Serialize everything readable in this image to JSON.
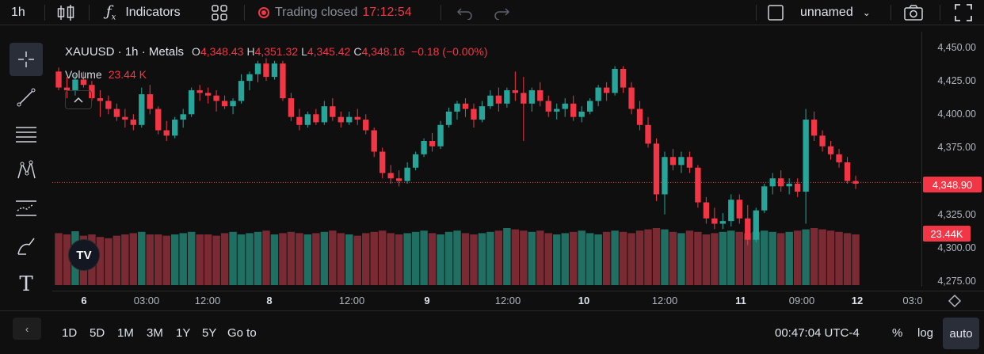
{
  "toolbar": {
    "interval": "1h",
    "indicators_label": "Indicators",
    "market_status": "Trading closed",
    "market_time": "17:12:54",
    "layout_name": "unnamed"
  },
  "legend": {
    "symbol": "XAUUSD · 1h · Metals",
    "o_label": "O",
    "o_value": "4,348.43",
    "h_label": "H",
    "h_value": "4,351.32",
    "l_label": "L",
    "l_value": "4,345.42",
    "c_label": "C",
    "c_value": "4,348.16",
    "change": "−0.18 (−0.00%)",
    "volume_label": "Volume",
    "volume_value": "23.44 K"
  },
  "price_axis": {
    "ticks": [
      "4,450.00",
      "4,425.00",
      "4,400.00",
      "4,375.00",
      "4,325.00",
      "4,300.00",
      "4,275.00"
    ],
    "last_price": "4,348.90",
    "last_volume": "23.44K"
  },
  "time_axis": {
    "ticks": [
      {
        "label": "6",
        "bold": true
      },
      {
        "label": "03:00",
        "bold": false
      },
      {
        "label": "12:00",
        "bold": false
      },
      {
        "label": "8",
        "bold": true
      },
      {
        "label": "12:00",
        "bold": false
      },
      {
        "label": "9",
        "bold": true
      },
      {
        "label": "12:00",
        "bold": false
      },
      {
        "label": "10",
        "bold": true
      },
      {
        "label": "12:00",
        "bold": false
      },
      {
        "label": "11",
        "bold": true
      },
      {
        "label": "09:00",
        "bold": false
      },
      {
        "label": "12",
        "bold": true
      },
      {
        "label": "03:0",
        "bold": false
      }
    ]
  },
  "bottom": {
    "ranges": [
      "1D",
      "5D",
      "1M",
      "3M",
      "1Y",
      "5Y"
    ],
    "goto": "Go to",
    "clock": "00:47:04 UTC-4",
    "percent": "%",
    "log": "log",
    "auto": "auto"
  },
  "colors": {
    "up": "#26a69a",
    "down": "#f23645",
    "up_volume": "#1f6f63",
    "down_volume": "#7a2a33",
    "background": "#0f0f0f"
  },
  "chart_data": {
    "type": "candlestick",
    "symbol": "XAUUSD",
    "interval": "1h",
    "ylim": [
      4270,
      4455
    ],
    "last_price": 4348.9,
    "candles": [
      [
        4432,
        4435,
        4418,
        4420
      ],
      [
        4420,
        4428,
        4412,
        4418
      ],
      [
        4418,
        4430,
        4414,
        4426
      ],
      [
        4426,
        4432,
        4420,
        4422
      ],
      [
        4422,
        4425,
        4410,
        4412
      ],
      [
        4412,
        4418,
        4398,
        4410
      ],
      [
        4410,
        4414,
        4400,
        4404
      ],
      [
        4404,
        4408,
        4395,
        4398
      ],
      [
        4398,
        4404,
        4390,
        4396
      ],
      [
        4396,
        4400,
        4388,
        4392
      ],
      [
        4392,
        4420,
        4390,
        4415
      ],
      [
        4415,
        4422,
        4400,
        4404
      ],
      [
        4404,
        4406,
        4385,
        4388
      ],
      [
        4388,
        4395,
        4380,
        4384
      ],
      [
        4384,
        4398,
        4382,
        4396
      ],
      [
        4396,
        4404,
        4390,
        4400
      ],
      [
        4400,
        4420,
        4398,
        4418
      ],
      [
        4418,
        4422,
        4410,
        4416
      ],
      [
        4416,
        4420,
        4408,
        4414
      ],
      [
        4414,
        4418,
        4402,
        4410
      ],
      [
        4410,
        4414,
        4404,
        4406
      ],
      [
        4406,
        4412,
        4400,
        4410
      ],
      [
        4410,
        4430,
        4408,
        4425
      ],
      [
        4425,
        4432,
        4418,
        4430
      ],
      [
        4430,
        4440,
        4424,
        4438
      ],
      [
        4438,
        4442,
        4425,
        4428
      ],
      [
        4428,
        4440,
        4426,
        4438
      ],
      [
        4438,
        4440,
        4410,
        4412
      ],
      [
        4412,
        4416,
        4395,
        4398
      ],
      [
        4398,
        4404,
        4388,
        4392
      ],
      [
        4392,
        4402,
        4390,
        4400
      ],
      [
        4400,
        4404,
        4392,
        4394
      ],
      [
        4394,
        4410,
        4392,
        4406
      ],
      [
        4406,
        4412,
        4395,
        4398
      ],
      [
        4398,
        4402,
        4390,
        4394
      ],
      [
        4394,
        4402,
        4392,
        4398
      ],
      [
        4398,
        4404,
        4392,
        4396
      ],
      [
        4396,
        4400,
        4385,
        4388
      ],
      [
        4388,
        4390,
        4368,
        4372
      ],
      [
        4372,
        4375,
        4352,
        4356
      ],
      [
        4356,
        4362,
        4348,
        4352
      ],
      [
        4352,
        4358,
        4346,
        4350
      ],
      [
        4350,
        4364,
        4348,
        4360
      ],
      [
        4360,
        4372,
        4358,
        4370
      ],
      [
        4370,
        4382,
        4368,
        4380
      ],
      [
        4380,
        4386,
        4372,
        4376
      ],
      [
        4376,
        4395,
        4374,
        4392
      ],
      [
        4392,
        4405,
        4390,
        4402
      ],
      [
        4402,
        4410,
        4396,
        4408
      ],
      [
        4408,
        4412,
        4398,
        4404
      ],
      [
        4404,
        4408,
        4390,
        4396
      ],
      [
        4396,
        4410,
        4394,
        4406
      ],
      [
        4406,
        4418,
        4404,
        4414
      ],
      [
        4414,
        4420,
        4402,
        4408
      ],
      [
        4408,
        4420,
        4405,
        4418
      ],
      [
        4418,
        4432,
        4410,
        4416
      ],
      [
        4416,
        4428,
        4380,
        4408
      ],
      [
        4408,
        4420,
        4402,
        4418
      ],
      [
        4418,
        4424,
        4406,
        4410
      ],
      [
        4410,
        4414,
        4398,
        4402
      ],
      [
        4402,
        4408,
        4396,
        4404
      ],
      [
        4404,
        4412,
        4398,
        4408
      ],
      [
        4408,
        4414,
        4395,
        4398
      ],
      [
        4398,
        4406,
        4394,
        4402
      ],
      [
        4402,
        4412,
        4400,
        4410
      ],
      [
        4410,
        4422,
        4406,
        4420
      ],
      [
        4420,
        4424,
        4410,
        4416
      ],
      [
        4416,
        4436,
        4414,
        4434
      ],
      [
        4434,
        4436,
        4416,
        4420
      ],
      [
        4420,
        4424,
        4400,
        4404
      ],
      [
        4404,
        4410,
        4388,
        4392
      ],
      [
        4392,
        4398,
        4375,
        4378
      ],
      [
        4378,
        4382,
        4335,
        4340
      ],
      [
        4340,
        4372,
        4325,
        4368
      ],
      [
        4368,
        4374,
        4358,
        4362
      ],
      [
        4362,
        4372,
        4356,
        4368
      ],
      [
        4368,
        4372,
        4356,
        4360
      ],
      [
        4360,
        4362,
        4330,
        4334
      ],
      [
        4334,
        4338,
        4318,
        4322
      ],
      [
        4322,
        4330,
        4314,
        4318
      ],
      [
        4318,
        4326,
        4314,
        4320
      ],
      [
        4320,
        4340,
        4316,
        4336
      ],
      [
        4336,
        4340,
        4318,
        4322
      ],
      [
        4322,
        4332,
        4302,
        4306
      ],
      [
        4306,
        4330,
        4304,
        4328
      ],
      [
        4328,
        4348,
        4326,
        4346
      ],
      [
        4346,
        4356,
        4340,
        4352
      ],
      [
        4352,
        4358,
        4342,
        4346
      ],
      [
        4346,
        4352,
        4340,
        4348
      ],
      [
        4348,
        4352,
        4338,
        4342
      ],
      [
        4342,
        4404,
        4318,
        4396
      ],
      [
        4396,
        4402,
        4380,
        4384
      ],
      [
        4384,
        4388,
        4372,
        4376
      ],
      [
        4376,
        4380,
        4366,
        4370
      ],
      [
        4370,
        4374,
        4360,
        4364
      ],
      [
        4364,
        4368,
        4348,
        4350
      ],
      [
        4350,
        4354,
        4344,
        4348
      ]
    ],
    "volume_ratio": [
      0.82,
      0.8,
      0.85,
      0.78,
      0.8,
      0.76,
      0.74,
      0.78,
      0.8,
      0.82,
      0.84,
      0.8,
      0.8,
      0.78,
      0.8,
      0.82,
      0.84,
      0.8,
      0.8,
      0.78,
      0.82,
      0.84,
      0.8,
      0.82,
      0.84,
      0.86,
      0.8,
      0.82,
      0.84,
      0.82,
      0.8,
      0.82,
      0.84,
      0.86,
      0.82,
      0.8,
      0.78,
      0.82,
      0.84,
      0.86,
      0.82,
      0.8,
      0.82,
      0.84,
      0.86,
      0.82,
      0.8,
      0.84,
      0.86,
      0.82,
      0.8,
      0.82,
      0.84,
      0.86,
      0.9,
      0.88,
      0.86,
      0.84,
      0.86,
      0.82,
      0.8,
      0.82,
      0.84,
      0.86,
      0.82,
      0.8,
      0.84,
      0.86,
      0.84,
      0.82,
      0.86,
      0.88,
      0.9,
      0.88,
      0.84,
      0.82,
      0.86,
      0.84,
      0.8,
      0.82,
      0.84,
      0.86,
      0.84,
      0.82,
      0.84,
      0.86,
      0.84,
      0.82,
      0.84,
      0.86,
      0.88,
      0.9,
      0.88,
      0.86,
      0.84,
      0.82,
      0.8
    ]
  }
}
